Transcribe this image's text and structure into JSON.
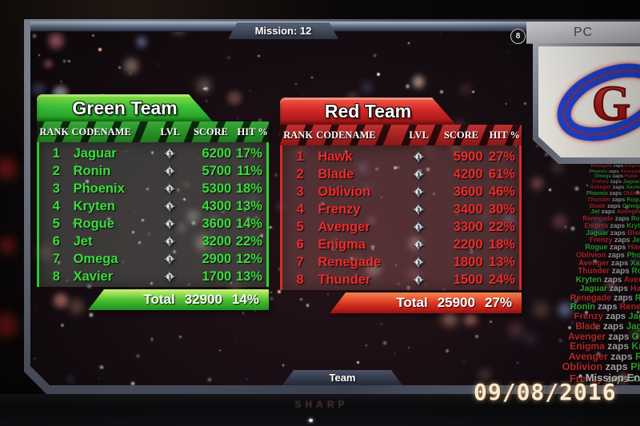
{
  "screen": {
    "mission_tab": "Mission: 12",
    "team_tab": "Team",
    "source_label": "PC",
    "source_badge": "8"
  },
  "columns": [
    "RANK",
    "CODENAME",
    "LVL",
    "SCORE",
    "HIT %"
  ],
  "teams": {
    "green": {
      "title": "Green Team",
      "accent_color": "#2ed32e",
      "text_color": "#3ade3a",
      "total_label": "Total",
      "total_score": "32900",
      "total_hit": "14%",
      "players": [
        {
          "rank": "1",
          "codename": "Jaguar",
          "lvl": "1",
          "score": "6200",
          "hit": "17%"
        },
        {
          "rank": "2",
          "codename": "Ronin",
          "lvl": "1",
          "score": "5700",
          "hit": "11%"
        },
        {
          "rank": "3",
          "codename": "Phoenix",
          "lvl": "1",
          "score": "5300",
          "hit": "18%"
        },
        {
          "rank": "4",
          "codename": "Kryten",
          "lvl": "1",
          "score": "4300",
          "hit": "13%"
        },
        {
          "rank": "5",
          "codename": "Rogue",
          "lvl": "1",
          "score": "3600",
          "hit": "14%"
        },
        {
          "rank": "6",
          "codename": "Jet",
          "lvl": "1",
          "score": "3200",
          "hit": "22%"
        },
        {
          "rank": "7",
          "codename": "Omega",
          "lvl": "1",
          "score": "2900",
          "hit": "12%"
        },
        {
          "rank": "8",
          "codename": "Xavier",
          "lvl": "1",
          "score": "1700",
          "hit": "13%"
        }
      ]
    },
    "red": {
      "title": "Red Team",
      "accent_color": "#d82a2a",
      "text_color": "#ef2b2b",
      "total_label": "Total",
      "total_score": "25900",
      "total_hit": "27%",
      "players": [
        {
          "rank": "1",
          "codename": "Hawk",
          "lvl": "1",
          "score": "5900",
          "hit": "27%"
        },
        {
          "rank": "2",
          "codename": "Blade",
          "lvl": "1",
          "score": "4200",
          "hit": "61%"
        },
        {
          "rank": "3",
          "codename": "Oblivion",
          "lvl": "1",
          "score": "3600",
          "hit": "46%"
        },
        {
          "rank": "4",
          "codename": "Frenzy",
          "lvl": "1",
          "score": "3400",
          "hit": "30%"
        },
        {
          "rank": "5",
          "codename": "Avenger",
          "lvl": "1",
          "score": "3300",
          "hit": "22%"
        },
        {
          "rank": "6",
          "codename": "Enigma",
          "lvl": "1",
          "score": "2200",
          "hit": "18%"
        },
        {
          "rank": "7",
          "codename": "Renegade",
          "lvl": "1",
          "score": "1800",
          "hit": "13%"
        },
        {
          "rank": "8",
          "codename": "Thunder",
          "lvl": "1",
          "score": "1500",
          "hit": "24%"
        }
      ]
    }
  },
  "feed": {
    "verb": "zaps",
    "mission_end": "* Mission End *",
    "events": [
      {
        "attacker": "Renegade",
        "attacker_team": "red",
        "target": "Enigma",
        "target_team": "red"
      },
      {
        "attacker": "Phoenix",
        "attacker_team": "green",
        "target": "Renegade",
        "target_team": "red"
      },
      {
        "attacker": "Omega",
        "attacker_team": "green",
        "target": "Hawk",
        "target_team": "red"
      },
      {
        "attacker": "Frenzy",
        "attacker_team": "red",
        "target": "Jaguar",
        "target_team": "green"
      },
      {
        "attacker": "Avenger",
        "attacker_team": "red",
        "target": "Xavier",
        "target_team": "green"
      },
      {
        "attacker": "Phoenix",
        "attacker_team": "green",
        "target": "Oblivion",
        "target_team": "red"
      },
      {
        "attacker": "Thunder",
        "attacker_team": "red",
        "target": "Rogue",
        "target_team": "green"
      },
      {
        "attacker": "Blade",
        "attacker_team": "red",
        "target": "Omega",
        "target_team": "green"
      },
      {
        "attacker": "Jet",
        "attacker_team": "green",
        "target": "Avenger",
        "target_team": "red"
      },
      {
        "attacker": "Renegade",
        "attacker_team": "red",
        "target": "Ronin",
        "target_team": "green"
      },
      {
        "attacker": "Enigma",
        "attacker_team": "red",
        "target": "Kryten",
        "target_team": "green"
      },
      {
        "attacker": "Jaguar",
        "attacker_team": "green",
        "target": "Blade",
        "target_team": "red"
      },
      {
        "attacker": "Frenzy",
        "attacker_team": "red",
        "target": "Jet",
        "target_team": "green"
      },
      {
        "attacker": "Rogue",
        "attacker_team": "green",
        "target": "Hawk",
        "target_team": "red"
      },
      {
        "attacker": "Oblivion",
        "attacker_team": "red",
        "target": "Phoenix",
        "target_team": "green"
      },
      {
        "attacker": "Avenger",
        "attacker_team": "red",
        "target": "Xavier",
        "target_team": "green"
      },
      {
        "attacker": "Thunder",
        "attacker_team": "red",
        "target": "Ronin",
        "target_team": "green"
      },
      {
        "attacker": "Kryten",
        "attacker_team": "green",
        "target": "Avenger",
        "target_team": "red"
      },
      {
        "attacker": "Jaguar",
        "attacker_team": "green",
        "target": "Hawk",
        "target_team": "red"
      },
      {
        "attacker": "Renegade",
        "attacker_team": "red",
        "target": "Rogue",
        "target_team": "green"
      },
      {
        "attacker": "Ronin",
        "attacker_team": "green",
        "target": "Renegade",
        "target_team": "red"
      },
      {
        "attacker": "Frenzy",
        "attacker_team": "red",
        "target": "Jaguar",
        "target_team": "green"
      },
      {
        "attacker": "Blade",
        "attacker_team": "red",
        "target": "Jaguar",
        "target_team": "green"
      },
      {
        "attacker": "Avenger",
        "attacker_team": "red",
        "target": "Omega",
        "target_team": "green"
      },
      {
        "attacker": "Enigma",
        "attacker_team": "red",
        "target": "Kryten",
        "target_team": "green"
      },
      {
        "attacker": "Avenger",
        "attacker_team": "red",
        "target": "Ronin",
        "target_team": "green"
      },
      {
        "attacker": "Oblivion",
        "attacker_team": "red",
        "target": "Phoenix",
        "target_team": "green"
      },
      {
        "attacker": "Frenzy",
        "attacker_team": "red",
        "target": "Xavier",
        "target_team": "green"
      }
    ]
  },
  "logo": {
    "letter": "G"
  },
  "tv": {
    "brand": "SHARP"
  },
  "camera": {
    "date_stamp": "09/08/2016"
  }
}
